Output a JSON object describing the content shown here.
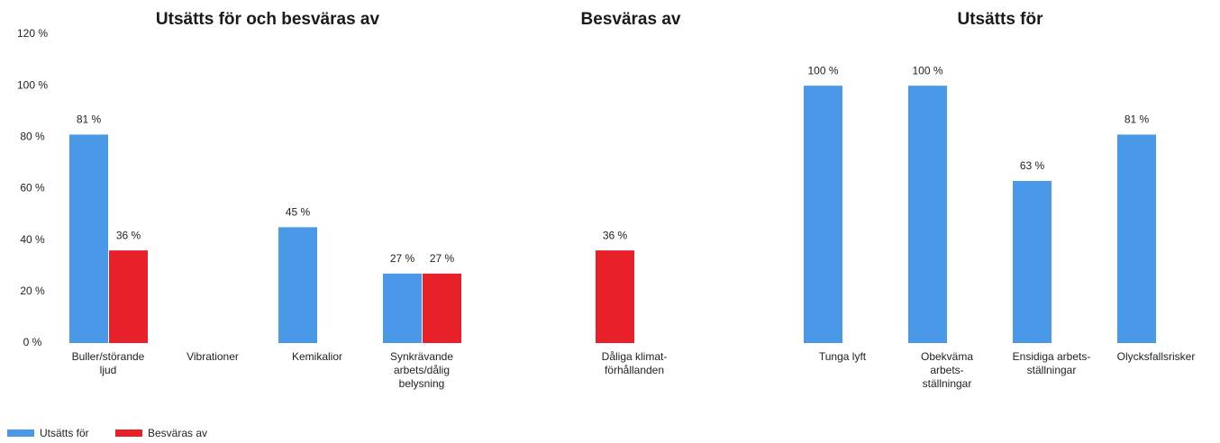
{
  "chart_data": [
    {
      "type": "bar",
      "title": "Utsätts för och besväras av",
      "categories": [
        "Buller/störande ljud",
        "Vibrationer",
        "Kemikalior",
        "Synkrävande arbets/dålig belysning"
      ],
      "series": [
        {
          "name": "Utsätts för",
          "color": "#4a98e8",
          "values": [
            81,
            null,
            45,
            27
          ],
          "value_labels": [
            "81 %",
            null,
            "45 %",
            "27 %"
          ]
        },
        {
          "name": "Besväras av",
          "color": "#e8202a",
          "values": [
            36,
            null,
            null,
            27
          ],
          "value_labels": [
            "36 %",
            null,
            null,
            "27 %"
          ]
        }
      ],
      "ylim": [
        0,
        120
      ],
      "yticks": [
        {
          "value": 0,
          "label": "0 %"
        },
        {
          "value": 20,
          "label": "20 %"
        },
        {
          "value": 40,
          "label": "40 %"
        },
        {
          "value": 60,
          "label": "60 %"
        },
        {
          "value": 80,
          "label": "80 %"
        },
        {
          "value": 100,
          "label": "100 %"
        },
        {
          "value": 120,
          "label": "120 %"
        }
      ],
      "legend": "bottom-left"
    },
    {
      "type": "bar",
      "title": "Besväras av",
      "categories": [
        "Dåliga klimat-förhållanden"
      ],
      "series": [
        {
          "name": "Besväras av",
          "color": "#e8202a",
          "values": [
            36
          ],
          "value_labels": [
            "36 %"
          ]
        }
      ],
      "ylim": [
        0,
        120
      ]
    },
    {
      "type": "bar",
      "title": "Utsätts för",
      "categories": [
        "Tunga lyft",
        "Obekväma arbets-ställningar",
        "Ensidiga arbets-ställningar",
        "Olycksfallsrisker"
      ],
      "series": [
        {
          "name": "Utsätts för",
          "color": "#4a98e8",
          "values": [
            100,
            100,
            63,
            81
          ],
          "value_labels": [
            "100 %",
            "100 %",
            "63 %",
            "81 %"
          ]
        }
      ],
      "ylim": [
        0,
        120
      ]
    }
  ]
}
